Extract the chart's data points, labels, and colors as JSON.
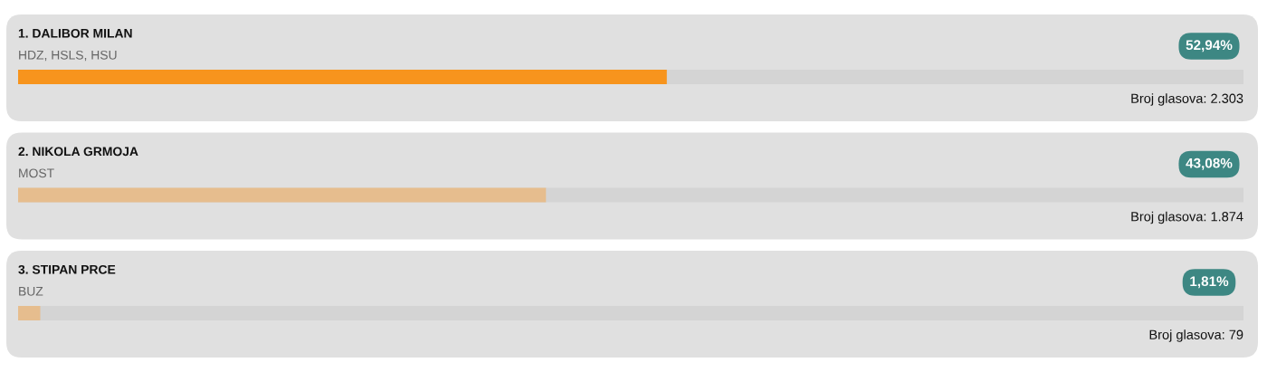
{
  "chart_data": {
    "type": "bar",
    "orientation": "horizontal",
    "categories": [
      "1. DALIBOR MILAN",
      "2. NIKOLA GRMOJA",
      "3. STIPAN PRCE"
    ],
    "values": [
      52.94,
      43.08,
      1.81
    ],
    "colors": [
      "#f7941d",
      "#e6bd8e",
      "#e6bd8e"
    ],
    "value_labels": [
      "52,94%",
      "43,08%",
      "1,81%"
    ],
    "xlim": [
      0,
      100
    ],
    "annotations": [
      "HDZ, HSLS, HSU",
      "Broj glasova: 2.303",
      "MOST",
      "Broj glasova: 1.874",
      "BUZ",
      "Broj glasova: 79"
    ]
  }
}
